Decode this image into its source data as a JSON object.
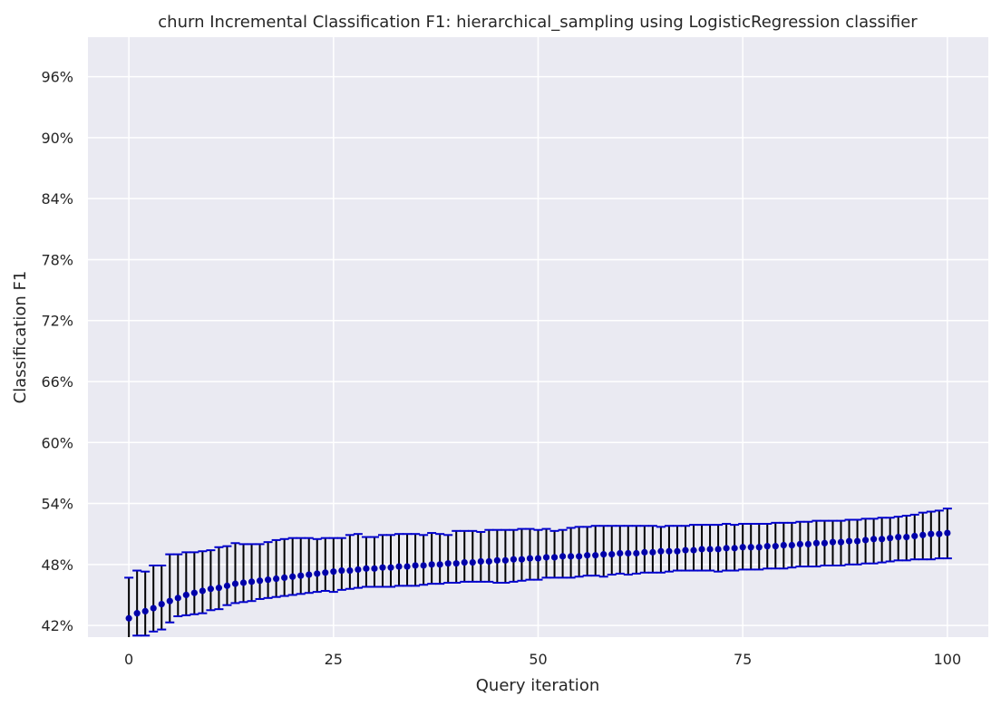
{
  "chart_data": {
    "type": "scatter",
    "title": "churn Incremental Classification F1: hierarchical_sampling using LogisticRegression classifier",
    "xlabel": "Query iteration",
    "ylabel": "Classification F1",
    "xlim": [
      -5,
      105
    ],
    "ylim": [
      0.4085,
      0.9989
    ],
    "x_ticks": [
      0,
      25,
      50,
      75,
      100
    ],
    "y_ticks": [
      0.42,
      0.48,
      0.54,
      0.6,
      0.66,
      0.72,
      0.78,
      0.84,
      0.9,
      0.96
    ],
    "y_tick_labels": [
      "42%",
      "48%",
      "54%",
      "60%",
      "66%",
      "72%",
      "78%",
      "84%",
      "90%",
      "96%"
    ],
    "grid": true,
    "background_color": "#eaeaf2",
    "grid_color": "#ffffff",
    "marker_color": "#0000aa",
    "errorbar_color": "#000000",
    "cap_color": "#0000cc",
    "series": [
      {
        "x_start": 0,
        "x_step": 1,
        "mean": [
          0.427,
          0.432,
          0.434,
          0.437,
          0.441,
          0.444,
          0.447,
          0.45,
          0.452,
          0.454,
          0.456,
          0.457,
          0.459,
          0.461,
          0.462,
          0.463,
          0.464,
          0.465,
          0.466,
          0.467,
          0.468,
          0.469,
          0.47,
          0.471,
          0.472,
          0.473,
          0.474,
          0.474,
          0.475,
          0.476,
          0.476,
          0.477,
          0.477,
          0.478,
          0.478,
          0.479,
          0.479,
          0.48,
          0.48,
          0.481,
          0.481,
          0.482,
          0.482,
          0.483,
          0.483,
          0.484,
          0.484,
          0.485,
          0.485,
          0.486,
          0.486,
          0.487,
          0.487,
          0.488,
          0.488,
          0.488,
          0.489,
          0.489,
          0.49,
          0.49,
          0.491,
          0.491,
          0.491,
          0.492,
          0.492,
          0.493,
          0.493,
          0.493,
          0.494,
          0.494,
          0.495,
          0.495,
          0.495,
          0.496,
          0.496,
          0.497,
          0.497,
          0.497,
          0.498,
          0.498,
          0.499,
          0.499,
          0.5,
          0.5,
          0.501,
          0.501,
          0.502,
          0.502,
          0.503,
          0.503,
          0.504,
          0.505,
          0.505,
          0.506,
          0.507,
          0.507,
          0.508,
          0.509,
          0.51,
          0.51,
          0.511
        ],
        "lower": [
          0.407,
          0.41,
          0.41,
          0.414,
          0.416,
          0.423,
          0.429,
          0.43,
          0.431,
          0.432,
          0.435,
          0.436,
          0.44,
          0.442,
          0.443,
          0.444,
          0.446,
          0.447,
          0.448,
          0.449,
          0.45,
          0.451,
          0.452,
          0.453,
          0.454,
          0.453,
          0.455,
          0.456,
          0.457,
          0.458,
          0.458,
          0.458,
          0.458,
          0.459,
          0.459,
          0.459,
          0.46,
          0.461,
          0.461,
          0.462,
          0.462,
          0.463,
          0.463,
          0.463,
          0.463,
          0.462,
          0.462,
          0.463,
          0.464,
          0.465,
          0.465,
          0.467,
          0.467,
          0.467,
          0.467,
          0.468,
          0.469,
          0.469,
          0.468,
          0.47,
          0.471,
          0.47,
          0.471,
          0.472,
          0.472,
          0.472,
          0.473,
          0.474,
          0.474,
          0.474,
          0.474,
          0.474,
          0.473,
          0.474,
          0.474,
          0.475,
          0.475,
          0.475,
          0.476,
          0.476,
          0.476,
          0.477,
          0.478,
          0.478,
          0.478,
          0.479,
          0.479,
          0.479,
          0.48,
          0.48,
          0.481,
          0.481,
          0.482,
          0.483,
          0.484,
          0.484,
          0.485,
          0.485,
          0.485,
          0.486,
          0.486
        ],
        "upper": [
          0.467,
          0.474,
          0.473,
          0.479,
          0.479,
          0.49,
          0.49,
          0.492,
          0.492,
          0.493,
          0.494,
          0.497,
          0.498,
          0.501,
          0.5,
          0.5,
          0.5,
          0.502,
          0.504,
          0.505,
          0.506,
          0.506,
          0.506,
          0.505,
          0.506,
          0.506,
          0.506,
          0.509,
          0.51,
          0.507,
          0.507,
          0.509,
          0.509,
          0.51,
          0.51,
          0.51,
          0.509,
          0.511,
          0.51,
          0.509,
          0.513,
          0.513,
          0.513,
          0.512,
          0.514,
          0.514,
          0.514,
          0.514,
          0.515,
          0.515,
          0.514,
          0.515,
          0.513,
          0.514,
          0.516,
          0.517,
          0.517,
          0.518,
          0.518,
          0.518,
          0.518,
          0.518,
          0.518,
          0.518,
          0.518,
          0.517,
          0.518,
          0.518,
          0.518,
          0.519,
          0.519,
          0.519,
          0.519,
          0.52,
          0.519,
          0.52,
          0.52,
          0.52,
          0.52,
          0.521,
          0.521,
          0.521,
          0.522,
          0.522,
          0.523,
          0.523,
          0.523,
          0.523,
          0.524,
          0.524,
          0.525,
          0.525,
          0.526,
          0.526,
          0.527,
          0.528,
          0.529,
          0.531,
          0.532,
          0.533,
          0.535
        ]
      }
    ]
  }
}
